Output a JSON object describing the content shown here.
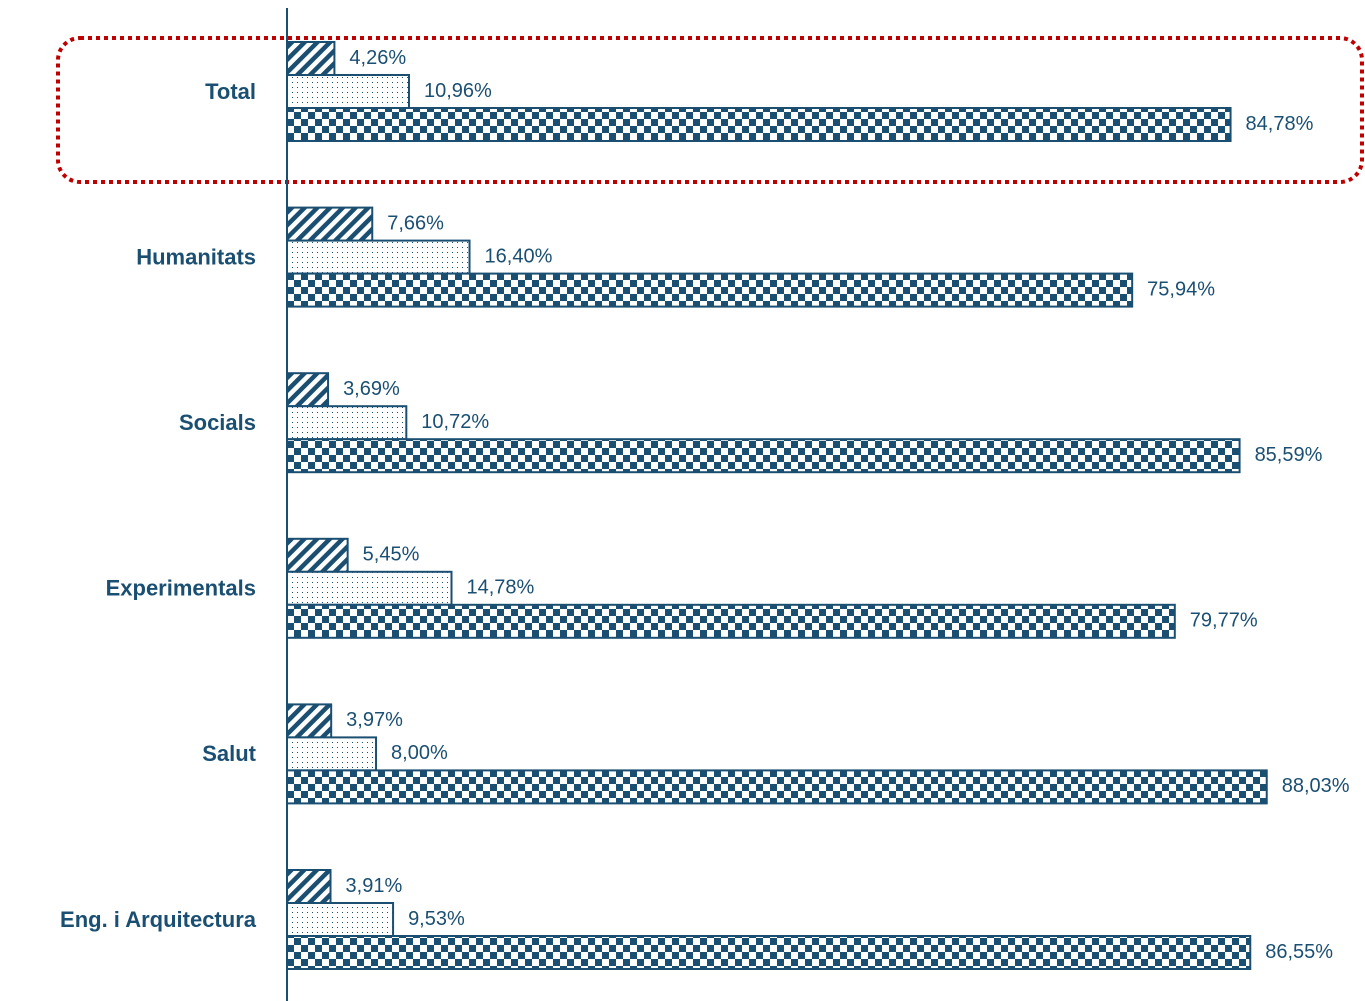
{
  "chart_data": {
    "type": "hbar",
    "categories": [
      "Total",
      "Humanitats",
      "Socials",
      "Experimentals",
      "Salut",
      "Eng. i Arquitectura"
    ],
    "series": [
      {
        "color": "#1b4f72",
        "pattern": "hatch",
        "values": [
          4.26,
          7.66,
          3.69,
          5.45,
          3.97,
          3.91
        ],
        "value_labels": [
          "4,26%",
          "7,66%",
          "3,69%",
          "5,45%",
          "3,97%",
          "3,91%"
        ]
      },
      {
        "color": "#1b4f72",
        "pattern": "dots",
        "values": [
          10.96,
          16.4,
          10.72,
          14.78,
          8.0,
          9.53
        ],
        "value_labels": [
          "10,96%",
          "16,40%",
          "10,72%",
          "14,78%",
          "8,00%",
          "9,53%"
        ]
      },
      {
        "color": "#1b4f72",
        "pattern": "checker",
        "values": [
          84.78,
          75.94,
          85.59,
          79.77,
          88.03,
          86.55
        ],
        "value_labels": [
          "84,78%",
          "75,94%",
          "85,59%",
          "79,77%",
          "88,03%",
          "86,55%"
        ]
      }
    ],
    "xlim": [
      0,
      96.5
    ]
  }
}
